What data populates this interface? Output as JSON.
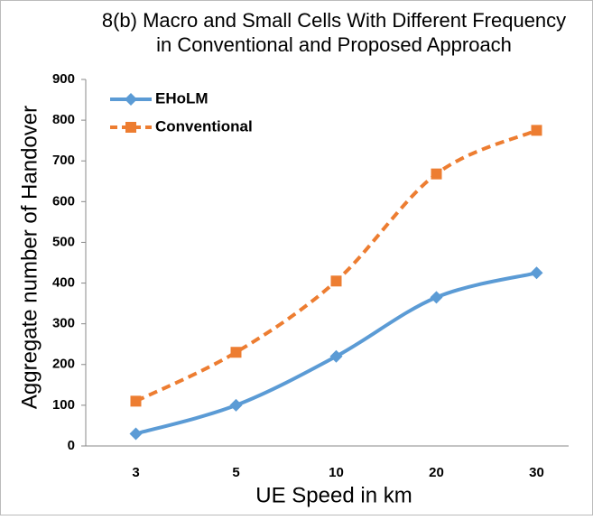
{
  "chart_data": {
    "type": "line",
    "title": [
      "8(b) Macro and Small Cells With Different Frequency",
      "in Conventional and Proposed Approach"
    ],
    "x_label": "UE Speed in km",
    "y_label": "Aggregate number of Handover",
    "categories": [
      "3",
      "5",
      "10",
      "20",
      "30"
    ],
    "series": [
      {
        "name": "EHoLM",
        "color": "#5b9bd5",
        "marker": "diamond",
        "dash": false,
        "values": [
          30,
          100,
          220,
          365,
          425
        ]
      },
      {
        "name": "Conventional",
        "color": "#ed7d31",
        "marker": "square",
        "dash": true,
        "values": [
          110,
          230,
          405,
          668,
          775
        ]
      }
    ],
    "ylim": [
      0,
      900
    ],
    "yticks": [
      0,
      100,
      200,
      300,
      400,
      500,
      600,
      700,
      800,
      900
    ],
    "grid": false,
    "legend": "upper-left"
  }
}
